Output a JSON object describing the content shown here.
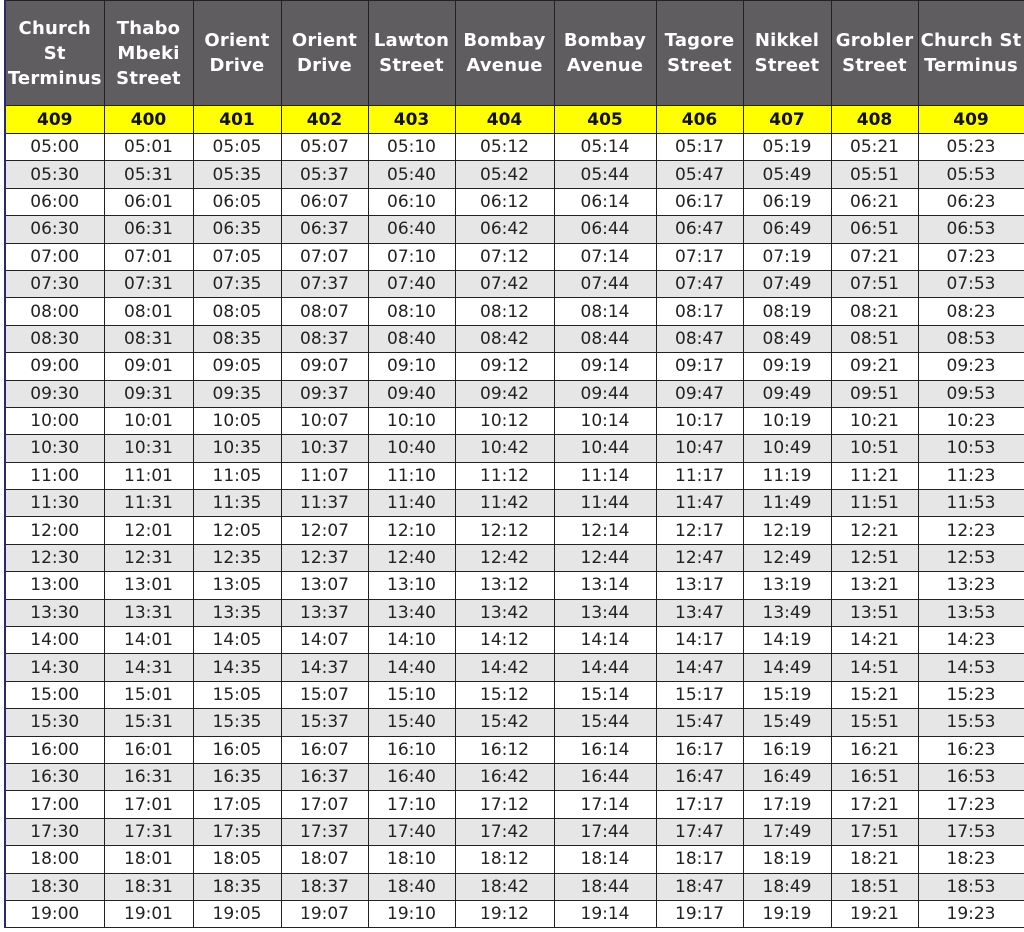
{
  "headers": [
    "Church St Terminus",
    "Thabo Mbeki Street",
    "Orient Drive",
    "Orient Drive",
    "Lawton Street",
    "Bombay Avenue",
    "Bombay Avenue",
    "Tagore Street",
    "Nikkel Street",
    "Grobler Street",
    "Church St Terminus"
  ],
  "stop_codes": [
    "409",
    "400",
    "401",
    "402",
    "403",
    "404",
    "405",
    "406",
    "407",
    "408",
    "409"
  ],
  "colors": {
    "header_bg": "#5f5d5f",
    "code_row_bg": "#ffff00",
    "alt_row_bg": "#e6e6e6"
  },
  "rows": [
    [
      "05:00",
      "05:01",
      "05:05",
      "05:07",
      "05:10",
      "05:12",
      "05:14",
      "05:17",
      "05:19",
      "05:21",
      "05:23"
    ],
    [
      "05:30",
      "05:31",
      "05:35",
      "05:37",
      "05:40",
      "05:42",
      "05:44",
      "05:47",
      "05:49",
      "05:51",
      "05:53"
    ],
    [
      "06:00",
      "06:01",
      "06:05",
      "06:07",
      "06:10",
      "06:12",
      "06:14",
      "06:17",
      "06:19",
      "06:21",
      "06:23"
    ],
    [
      "06:30",
      "06:31",
      "06:35",
      "06:37",
      "06:40",
      "06:42",
      "06:44",
      "06:47",
      "06:49",
      "06:51",
      "06:53"
    ],
    [
      "07:00",
      "07:01",
      "07:05",
      "07:07",
      "07:10",
      "07:12",
      "07:14",
      "07:17",
      "07:19",
      "07:21",
      "07:23"
    ],
    [
      "07:30",
      "07:31",
      "07:35",
      "07:37",
      "07:40",
      "07:42",
      "07:44",
      "07:47",
      "07:49",
      "07:51",
      "07:53"
    ],
    [
      "08:00",
      "08:01",
      "08:05",
      "08:07",
      "08:10",
      "08:12",
      "08:14",
      "08:17",
      "08:19",
      "08:21",
      "08:23"
    ],
    [
      "08:30",
      "08:31",
      "08:35",
      "08:37",
      "08:40",
      "08:42",
      "08:44",
      "08:47",
      "08:49",
      "08:51",
      "08:53"
    ],
    [
      "09:00",
      "09:01",
      "09:05",
      "09:07",
      "09:10",
      "09:12",
      "09:14",
      "09:17",
      "09:19",
      "09:21",
      "09:23"
    ],
    [
      "09:30",
      "09:31",
      "09:35",
      "09:37",
      "09:40",
      "09:42",
      "09:44",
      "09:47",
      "09:49",
      "09:51",
      "09:53"
    ],
    [
      "10:00",
      "10:01",
      "10:05",
      "10:07",
      "10:10",
      "10:12",
      "10:14",
      "10:17",
      "10:19",
      "10:21",
      "10:23"
    ],
    [
      "10:30",
      "10:31",
      "10:35",
      "10:37",
      "10:40",
      "10:42",
      "10:44",
      "10:47",
      "10:49",
      "10:51",
      "10:53"
    ],
    [
      "11:00",
      "11:01",
      "11:05",
      "11:07",
      "11:10",
      "11:12",
      "11:14",
      "11:17",
      "11:19",
      "11:21",
      "11:23"
    ],
    [
      "11:30",
      "11:31",
      "11:35",
      "11:37",
      "11:40",
      "11:42",
      "11:44",
      "11:47",
      "11:49",
      "11:51",
      "11:53"
    ],
    [
      "12:00",
      "12:01",
      "12:05",
      "12:07",
      "12:10",
      "12:12",
      "12:14",
      "12:17",
      "12:19",
      "12:21",
      "12:23"
    ],
    [
      "12:30",
      "12:31",
      "12:35",
      "12:37",
      "12:40",
      "12:42",
      "12:44",
      "12:47",
      "12:49",
      "12:51",
      "12:53"
    ],
    [
      "13:00",
      "13:01",
      "13:05",
      "13:07",
      "13:10",
      "13:12",
      "13:14",
      "13:17",
      "13:19",
      "13:21",
      "13:23"
    ],
    [
      "13:30",
      "13:31",
      "13:35",
      "13:37",
      "13:40",
      "13:42",
      "13:44",
      "13:47",
      "13:49",
      "13:51",
      "13:53"
    ],
    [
      "14:00",
      "14:01",
      "14:05",
      "14:07",
      "14:10",
      "14:12",
      "14:14",
      "14:17",
      "14:19",
      "14:21",
      "14:23"
    ],
    [
      "14:30",
      "14:31",
      "14:35",
      "14:37",
      "14:40",
      "14:42",
      "14:44",
      "14:47",
      "14:49",
      "14:51",
      "14:53"
    ],
    [
      "15:00",
      "15:01",
      "15:05",
      "15:07",
      "15:10",
      "15:12",
      "15:14",
      "15:17",
      "15:19",
      "15:21",
      "15:23"
    ],
    [
      "15:30",
      "15:31",
      "15:35",
      "15:37",
      "15:40",
      "15:42",
      "15:44",
      "15:47",
      "15:49",
      "15:51",
      "15:53"
    ],
    [
      "16:00",
      "16:01",
      "16:05",
      "16:07",
      "16:10",
      "16:12",
      "16:14",
      "16:17",
      "16:19",
      "16:21",
      "16:23"
    ],
    [
      "16:30",
      "16:31",
      "16:35",
      "16:37",
      "16:40",
      "16:42",
      "16:44",
      "16:47",
      "16:49",
      "16:51",
      "16:53"
    ],
    [
      "17:00",
      "17:01",
      "17:05",
      "17:07",
      "17:10",
      "17:12",
      "17:14",
      "17:17",
      "17:19",
      "17:21",
      "17:23"
    ],
    [
      "17:30",
      "17:31",
      "17:35",
      "17:37",
      "17:40",
      "17:42",
      "17:44",
      "17:47",
      "17:49",
      "17:51",
      "17:53"
    ],
    [
      "18:00",
      "18:01",
      "18:05",
      "18:07",
      "18:10",
      "18:12",
      "18:14",
      "18:17",
      "18:19",
      "18:21",
      "18:23"
    ],
    [
      "18:30",
      "18:31",
      "18:35",
      "18:37",
      "18:40",
      "18:42",
      "18:44",
      "18:47",
      "18:49",
      "18:51",
      "18:53"
    ],
    [
      "19:00",
      "19:01",
      "19:05",
      "19:07",
      "19:10",
      "19:12",
      "19:14",
      "19:17",
      "19:19",
      "19:21",
      "19:23"
    ]
  ]
}
